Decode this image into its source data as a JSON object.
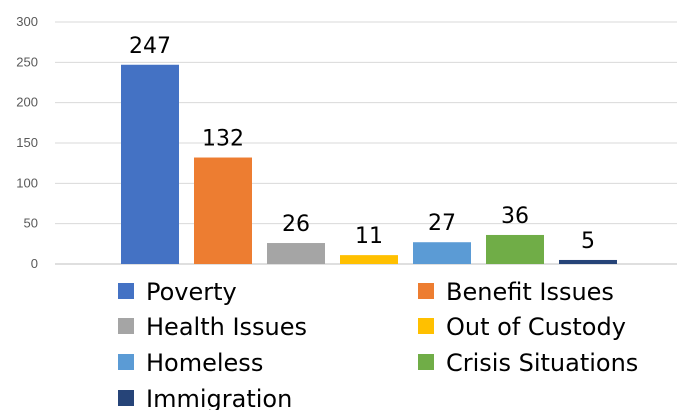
{
  "chart_data": {
    "type": "bar",
    "categories": [
      "Poverty",
      "Benefit Issues",
      "Health Issues",
      "Out of Custody",
      "Homeless",
      "Crisis Situations",
      "Immigration"
    ],
    "values": [
      247,
      132,
      26,
      11,
      27,
      36,
      5
    ],
    "data_labels": [
      "247",
      "132",
      "26",
      "11",
      "27",
      "36",
      "5"
    ],
    "colors": [
      "#4472C4",
      "#ED7D31",
      "#A5A5A5",
      "#FFC000",
      "#5B9BD5",
      "#70AD47",
      "#264478"
    ],
    "title": "",
    "xlabel": "",
    "ylabel": "",
    "ylim": [
      0,
      300
    ],
    "yticks": [
      0,
      50,
      100,
      150,
      200,
      250,
      300
    ],
    "ytick_labels": [
      "0",
      "50",
      "100",
      "150",
      "200",
      "250",
      "300"
    ],
    "grid": true,
    "legend": {
      "placement": "bottom",
      "entries": [
        "Poverty",
        "Benefit Issues",
        "Health Issues",
        "Out of Custody",
        "Homeless",
        "Crisis Situations",
        "Immigration"
      ]
    }
  }
}
